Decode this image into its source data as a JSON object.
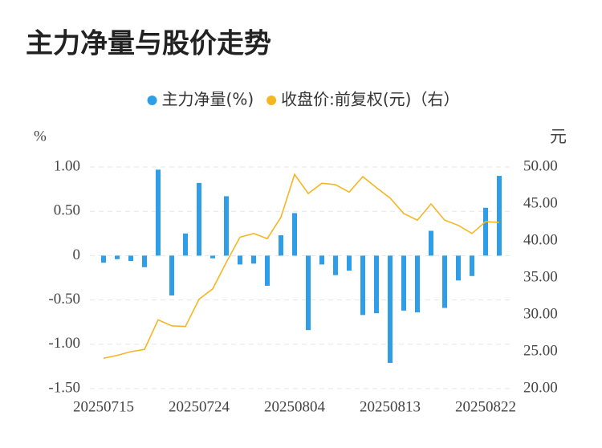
{
  "chart_data": {
    "type": "bar-line",
    "title": "主力净量与股价走势",
    "y_axis_label": "%",
    "y2_axis_label": "元",
    "categories": [
      "20250715",
      null,
      null,
      null,
      null,
      null,
      null,
      "20250724",
      null,
      null,
      null,
      null,
      null,
      null,
      "20250804",
      null,
      null,
      null,
      null,
      null,
      null,
      "20250813",
      null,
      null,
      null,
      null,
      null,
      null,
      "20250822",
      null
    ],
    "series": [
      {
        "name": "主力净量(%)",
        "color": "#2e9ee9",
        "type": "bar",
        "values": [
          -0.08,
          -0.04,
          -0.06,
          -0.13,
          0.97,
          -0.45,
          0.25,
          0.82,
          -0.03,
          0.67,
          -0.1,
          -0.09,
          -0.34,
          0.23,
          0.48,
          -0.84,
          -0.1,
          -0.22,
          -0.17,
          -0.67,
          -0.65,
          -1.21,
          -0.62,
          -0.64,
          0.28,
          -0.59,
          -0.28,
          -0.23,
          0.54,
          0.9
        ]
      },
      {
        "name": "收盘价:前复权(元)（右）",
        "color": "#f5b622",
        "type": "line",
        "axis": "y2",
        "values": [
          24.1,
          24.5,
          25.0,
          25.3,
          29.3,
          28.5,
          28.4,
          32.1,
          33.5,
          37.1,
          40.5,
          41.0,
          40.3,
          43.2,
          49.0,
          46.4,
          47.8,
          47.6,
          46.6,
          48.7,
          47.2,
          45.8,
          43.7,
          42.8,
          45.0,
          42.8,
          42.1,
          41.0,
          42.6,
          42.5
        ]
      }
    ],
    "ylim": [
      -1.5,
      1.0
    ],
    "yticks": [
      {
        "value": 1,
        "label": "1.00"
      },
      {
        "value": 0.5,
        "label": "0.50"
      },
      0,
      {
        "value": -0.5,
        "label": "-0.50"
      },
      {
        "value": -1,
        "label": "-1.00"
      },
      {
        "value": -1.5,
        "label": "-1.50"
      }
    ],
    "y2lim": [
      20,
      50
    ],
    "y2ticks": [
      {
        "value": 50,
        "label": "50.00"
      },
      {
        "value": 45,
        "label": "45.00"
      },
      {
        "value": 40,
        "label": "40.00"
      },
      {
        "value": 35,
        "label": "35.00"
      },
      {
        "value": 30,
        "label": "30.00"
      },
      {
        "value": 25,
        "label": "25.00"
      },
      {
        "value": 20,
        "label": "20.00"
      }
    ],
    "grid": true
  }
}
